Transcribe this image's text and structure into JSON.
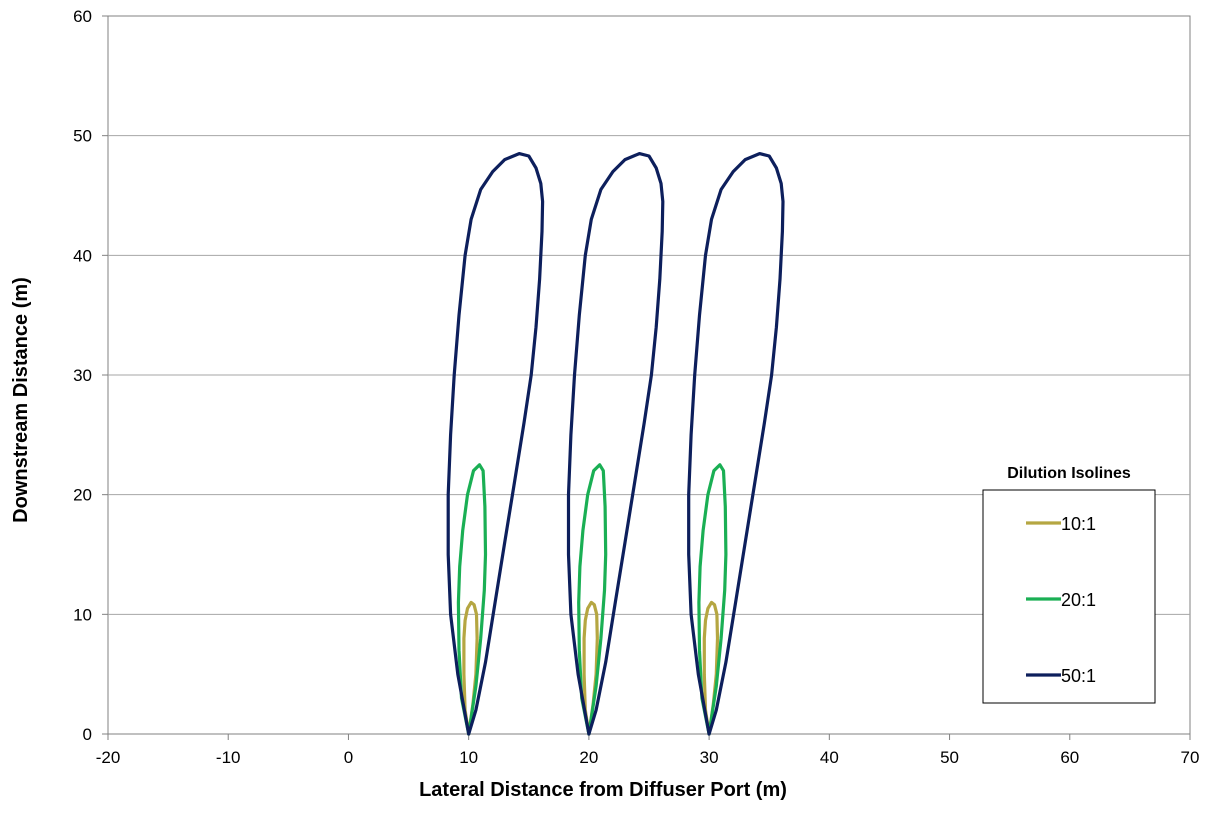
{
  "chart_data": {
    "type": "line",
    "title": "",
    "xlabel": "Lateral Distance from Diffuser Port (m)",
    "ylabel": "Downstream Distance (m)",
    "xlim": [
      -20,
      70
    ],
    "ylim": [
      0,
      60
    ],
    "xticks": [
      -20,
      -10,
      0,
      10,
      20,
      30,
      40,
      50,
      60,
      70
    ],
    "yticks": [
      0,
      10,
      20,
      30,
      40,
      50,
      60
    ],
    "grid": "horizontal",
    "legend_title": "Dilution Isolines",
    "legend_position": "right",
    "source_ports_x": [
      10,
      20,
      30
    ],
    "series": [
      {
        "name": "10:1",
        "color": "#B5A642",
        "shape": [
          [
            0,
            0
          ],
          [
            -0.3,
            2
          ],
          [
            -0.4,
            5
          ],
          [
            -0.4,
            8
          ],
          [
            -0.3,
            9.5
          ],
          [
            -0.1,
            10.5
          ],
          [
            0.2,
            11
          ],
          [
            0.45,
            10.8
          ],
          [
            0.65,
            10
          ],
          [
            0.7,
            8
          ],
          [
            0.6,
            5
          ],
          [
            0.35,
            2.5
          ],
          [
            0,
            0
          ]
        ]
      },
      {
        "name": "20:1",
        "color": "#1AAF54",
        "shape": [
          [
            0,
            0
          ],
          [
            -0.6,
            3
          ],
          [
            -0.8,
            7
          ],
          [
            -0.85,
            11
          ],
          [
            -0.75,
            14
          ],
          [
            -0.5,
            17
          ],
          [
            -0.1,
            20
          ],
          [
            0.4,
            22
          ],
          [
            0.9,
            22.5
          ],
          [
            1.2,
            22
          ],
          [
            1.35,
            19
          ],
          [
            1.4,
            15
          ],
          [
            1.3,
            12
          ],
          [
            1.0,
            8
          ],
          [
            0.6,
            4
          ],
          [
            0,
            0
          ]
        ]
      },
      {
        "name": "50:1",
        "color": "#0D1F5C",
        "shape": [
          [
            0,
            0
          ],
          [
            -0.9,
            5
          ],
          [
            -1.5,
            10
          ],
          [
            -1.7,
            15
          ],
          [
            -1.7,
            20
          ],
          [
            -1.5,
            25
          ],
          [
            -1.2,
            30
          ],
          [
            -0.8,
            35
          ],
          [
            -0.3,
            40
          ],
          [
            0.2,
            43
          ],
          [
            1.0,
            45.5
          ],
          [
            2.0,
            47
          ],
          [
            3.0,
            48
          ],
          [
            4.2,
            48.5
          ],
          [
            5.0,
            48.3
          ],
          [
            5.6,
            47.3
          ],
          [
            6.0,
            46
          ],
          [
            6.15,
            44.5
          ],
          [
            6.1,
            42
          ],
          [
            5.9,
            38
          ],
          [
            5.6,
            34
          ],
          [
            5.2,
            30
          ],
          [
            4.6,
            26
          ],
          [
            3.8,
            21
          ],
          [
            3.0,
            16
          ],
          [
            2.2,
            11
          ],
          [
            1.4,
            6
          ],
          [
            0.6,
            2
          ],
          [
            0,
            0
          ]
        ]
      }
    ]
  }
}
